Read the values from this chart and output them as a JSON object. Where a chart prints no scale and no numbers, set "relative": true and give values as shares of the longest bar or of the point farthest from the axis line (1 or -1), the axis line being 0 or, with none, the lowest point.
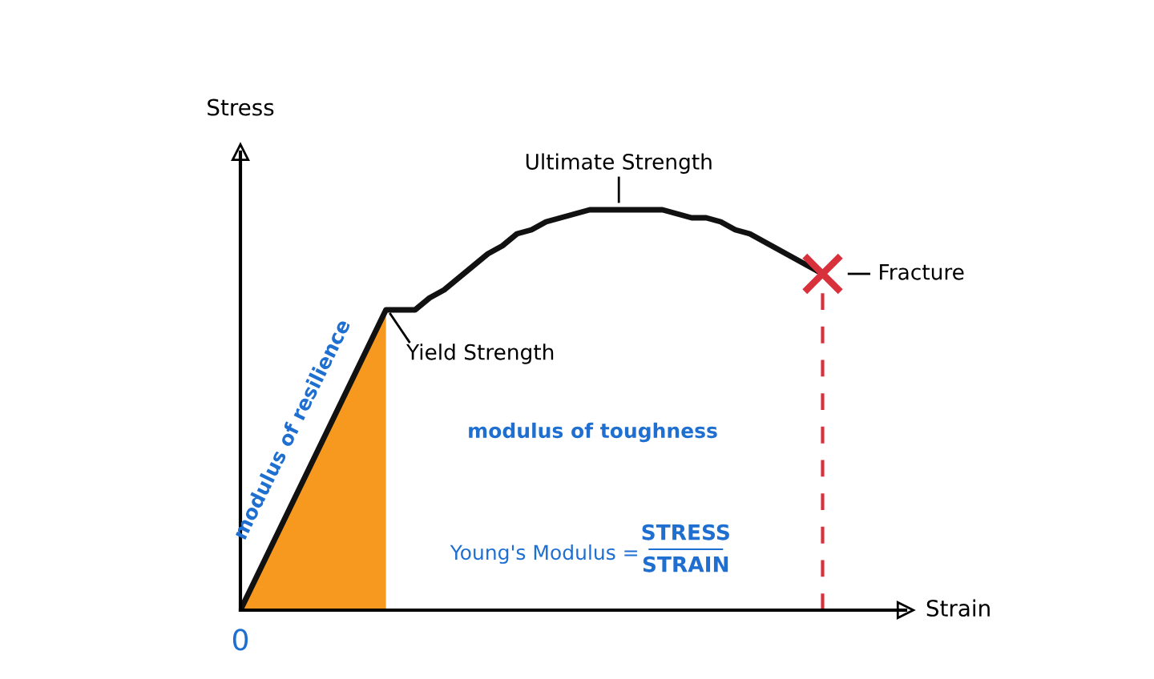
{
  "chart_data": {
    "type": "line",
    "relative": true,
    "ylabel": "Stress",
    "xlabel": "Strain",
    "legend": false,
    "categories": [
      null,
      null,
      null,
      null,
      null,
      null,
      null,
      null,
      null,
      null,
      null,
      null,
      null,
      null,
      null,
      null,
      null,
      null,
      null,
      null,
      null,
      null,
      null,
      null,
      null,
      null,
      null,
      null,
      null,
      null,
      null,
      null,
      null,
      null,
      null,
      null,
      null,
      null,
      null,
      null,
      null
    ],
    "series": [
      {
        "color": "#111111",
        "line_style": "solid",
        "values": [
          0,
          0.075,
          0.15,
          0.225,
          0.3,
          0.375,
          0.45,
          0.525,
          0.6,
          0.675,
          0.75,
          0.75,
          0.75,
          0.78,
          0.8,
          0.83,
          0.86,
          0.89,
          0.91,
          0.94,
          0.95,
          0.97,
          0.98,
          0.99,
          1.0,
          1.0,
          1.0,
          1.0,
          1.0,
          1.0,
          0.99,
          0.98,
          0.98,
          0.97,
          0.95,
          0.94,
          0.92,
          0.9,
          0.88,
          0.86,
          0.84
        ]
      }
    ],
    "annotations": [
      "0",
      "Ultimate Strength",
      "Yield Strength",
      "Fracture",
      "modulus of resilience",
      "modulus of toughness",
      "Young's Modulus =",
      "STRESS",
      "STRAIN"
    ]
  }
}
